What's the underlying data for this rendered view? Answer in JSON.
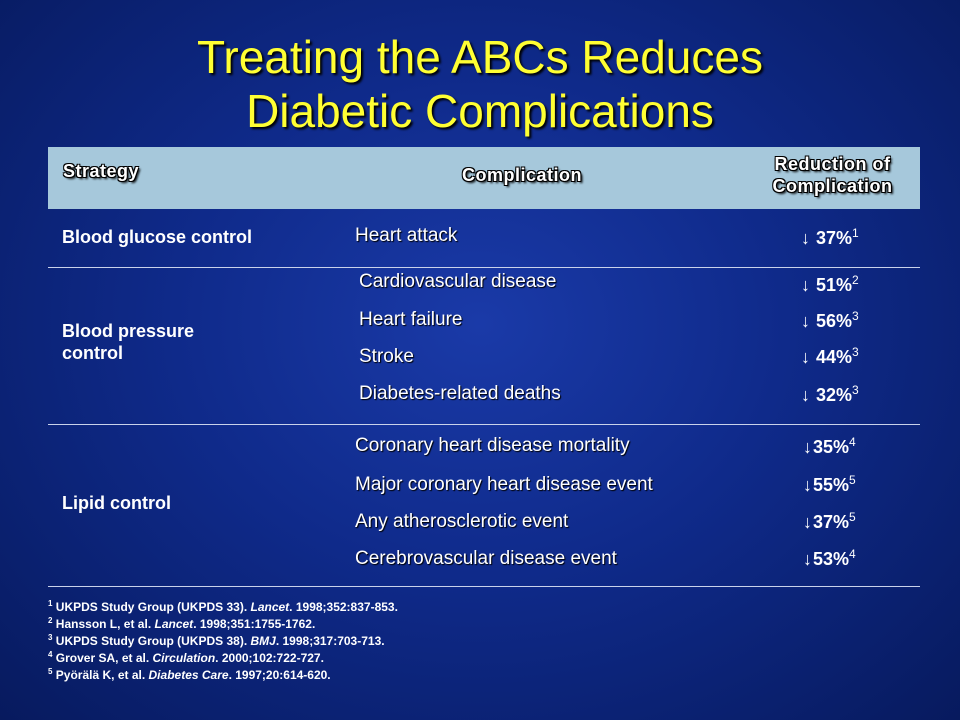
{
  "title": {
    "line1": "Treating the ABCs Reduces",
    "line2": "Diabetic Complications"
  },
  "table": {
    "headers": {
      "strategy": "Strategy",
      "complication": "Complication",
      "reduction_line1": "Reduction of",
      "reduction_line2": "Complication"
    },
    "arrow_glyph": "↓",
    "groups": [
      {
        "strategy": "Blood glucose control",
        "rows": [
          {
            "complication": "Heart attack",
            "reduction": "37%",
            "ref": "1"
          }
        ]
      },
      {
        "strategy_line1": "Blood pressure",
        "strategy_line2": "control",
        "rows": [
          {
            "complication": "Cardiovascular disease",
            "reduction": "51%",
            "ref": "2"
          },
          {
            "complication": "Heart failure",
            "reduction": "56%",
            "ref": "3"
          },
          {
            "complication": "Stroke",
            "reduction": "44%",
            "ref": "3"
          },
          {
            "complication": "Diabetes-related deaths",
            "reduction": "32%",
            "ref": "3"
          }
        ]
      },
      {
        "strategy": "Lipid control",
        "rows": [
          {
            "complication": "Coronary heart disease mortality",
            "reduction": "35%",
            "ref": "4"
          },
          {
            "complication": "Major coronary heart disease event",
            "reduction": "55%",
            "ref": "5"
          },
          {
            "complication": "Any atherosclerotic event",
            "reduction": "37%",
            "ref": "5"
          },
          {
            "complication": "Cerebrovascular disease event",
            "reduction": "53%",
            "ref": "4"
          }
        ]
      }
    ]
  },
  "references": [
    {
      "num": "1",
      "pre": "UKPDS Study Group (UKPDS 33). ",
      "journal": "Lancet",
      "post": ". 1998;352:837-853."
    },
    {
      "num": "2",
      "pre": "Hansson L, et al. ",
      "journal": "Lancet",
      "post": ". 1998;351:1755-1762."
    },
    {
      "num": "3",
      "pre": "UKPDS Study Group (UKPDS 38). ",
      "journal": "BMJ",
      "post": ". 1998;317:703-713."
    },
    {
      "num": "4",
      "pre": "Grover SA, et al. ",
      "journal": "Circulation",
      "post": ". 2000;102:722-727."
    },
    {
      "num": "5",
      "pre": "Pyörälä K, et al. ",
      "journal": "Diabetes Care",
      "post": ". 1997;20:614-620."
    }
  ],
  "colors": {
    "background": "#0f2a8a",
    "title": "#ffff33",
    "header_bar": "#a6c8db"
  }
}
